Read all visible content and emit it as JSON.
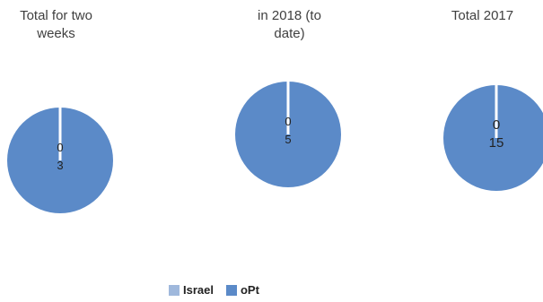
{
  "colors": {
    "israel": "#9fb8dc",
    "opt": "#5b8ac8",
    "separator": "#ffffff"
  },
  "legend": {
    "israel_label": "Israel",
    "opt_label": "oPt"
  },
  "chart_data": [
    {
      "type": "pie",
      "title": "Total for two\nweeks",
      "slices": [
        {
          "name": "Israel",
          "value": 0
        },
        {
          "name": "oPt",
          "value": 3
        }
      ]
    },
    {
      "type": "pie",
      "title": "in 2018 (to\ndate)",
      "slices": [
        {
          "name": "Israel",
          "value": 0
        },
        {
          "name": "oPt",
          "value": 5
        }
      ]
    },
    {
      "type": "pie",
      "title": "Total 2017",
      "slices": [
        {
          "name": "Israel",
          "value": 0
        },
        {
          "name": "oPt",
          "value": 15
        }
      ]
    }
  ]
}
